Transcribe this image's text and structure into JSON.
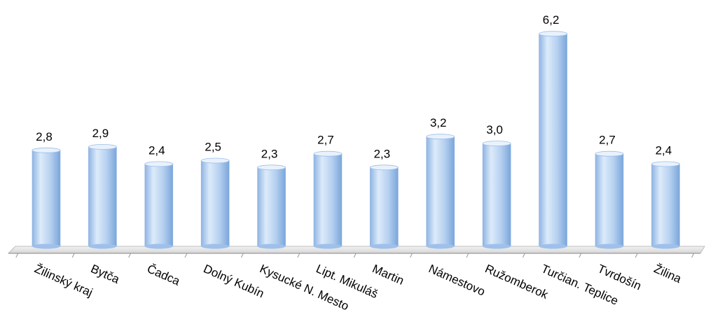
{
  "chart_data": {
    "type": "bar",
    "categories": [
      "Žilinský kraj",
      "Bytča",
      "Čadca",
      "Dolný Kubín",
      "Kysucké N. Mesto",
      "Lipt. Mikuláš",
      "Martin",
      "Námestovo",
      "Ružomberok",
      "Turčian. Teplice",
      "Tvrdošín",
      "Žilina"
    ],
    "values": [
      2.8,
      2.9,
      2.4,
      2.5,
      2.3,
      2.7,
      2.3,
      3.2,
      3.0,
      6.2,
      2.7,
      2.4
    ],
    "value_labels": [
      "2,8",
      "2,9",
      "2,4",
      "2,5",
      "2,3",
      "2,7",
      "2,3",
      "3,2",
      "3,0",
      "6,2",
      "2,7",
      "2,4"
    ],
    "title": "",
    "xlabel": "",
    "ylabel": "",
    "ylim": [
      0,
      6.5
    ],
    "grid": false,
    "legend": "none",
    "colors": {
      "bar_light": "#dbe9f9",
      "bar_mid": "#a9c8ee",
      "bar_dark": "#6f9fd6",
      "floor": "#dcdcdc",
      "axis": "#9a9a9a"
    }
  }
}
